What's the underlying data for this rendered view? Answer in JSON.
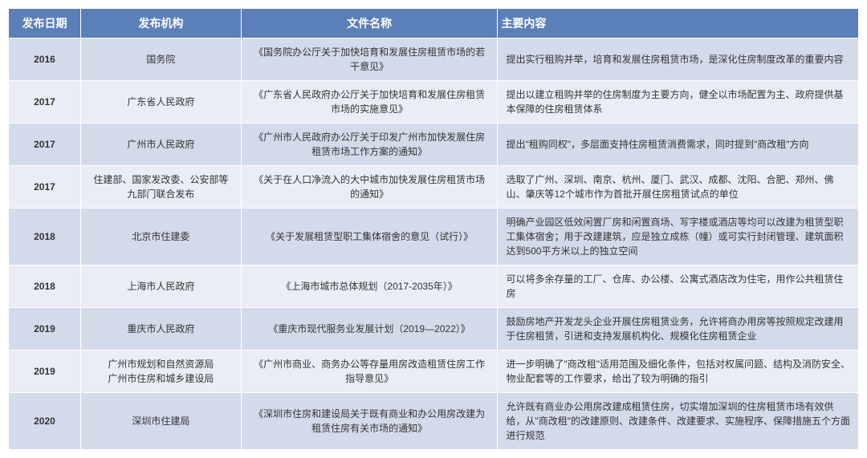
{
  "table": {
    "headers": [
      "发布日期",
      "发布机构",
      "文件名称",
      "主要内容"
    ],
    "header_bg": "#5b7fb9",
    "header_color": "#ffffff",
    "odd_row_bg": "#d3daea",
    "even_row_bg": "#eaedf5",
    "text_color": "#333333",
    "font_size_header": 14,
    "font_size_cell": 12,
    "rows": [
      {
        "date": "2016",
        "agency": "国务院",
        "docname": "《国务院办公厅关于加快培育和发展住房租赁市场的若干意见》",
        "content": "提出实行租购并举，培育和发展住房租赁市场，是深化住房制度改革的重要内容"
      },
      {
        "date": "2017",
        "agency": "广东省人民政府",
        "docname": "《广东省人民政府办公厅关于加快培育和发展住房租赁市场的实施意见》",
        "content": "提出以建立租购并举的住房制度为主要方向，健全以市场配置为主、政府提供基本保障的住房租赁体系"
      },
      {
        "date": "2017",
        "agency": "广州市人民政府",
        "docname": "《广州市人民政府办公厅关于印发广州市加快发展住房租赁市场工作方案的通知》",
        "content": "提出\"租购同权\"，多层面支持住房租赁消费需求，同时提到\"商改租\"方向"
      },
      {
        "date": "2017",
        "agency": "住建部、国家发改委、公安部等九部门联合发布",
        "docname": "《关于在人口净流入的大中城市加快发展住房租赁市场的通知》",
        "content": "选取了广州、深圳、南京、杭州、厦门、武汉、成都、沈阳、合肥、郑州、佛山、肇庆等12个城市作为首批开展住房租赁试点的单位"
      },
      {
        "date": "2018",
        "agency": "北京市住建委",
        "docname": "《关于发展租赁型职工集体宿舍的意见（试行）》",
        "content": "明确产业园区低效闲置厂房和闲置商场、写字楼或酒店等均可以改建为租赁型职工集体宿舍；用于改建建筑，应是独立成栋（幢）或可实行封闭管理、建筑面积达到500平方米以上的独立空间"
      },
      {
        "date": "2018",
        "agency": "上海市人民政府",
        "docname": "《上海市城市总体规划（2017-2035年）》",
        "content": "可以将多余存量的工厂、仓库、办公楼、公寓式酒店改为住宅，用作公共租赁住房"
      },
      {
        "date": "2019",
        "agency": "重庆市人民政府",
        "docname": "《重庆市现代服务业发展计划（2019—2022）》",
        "content": "鼓励房地产开发龙头企业开展住房租赁业务，允许将商办用房等按照规定改建用于住房租赁，引进和支持发展机构化、规模化住房租赁企业"
      },
      {
        "date": "2019",
        "agency": "广州市规划和自然资源局\n广州市住房和城乡建设局",
        "docname": "《广州市商业、商务办公等存量用房改造租赁住房工作指导意见》",
        "content": "进一步明确了\"商改租\"适用范围及细化条件，包括对权属问题、结构及消防安全、物业配套等的工作要求，给出了较为明确的指引"
      },
      {
        "date": "2020",
        "agency": "深圳市住建局",
        "docname": "《深圳市住房和建设局关于既有商业和办公用房改建为租赁住房有关市场的通知》",
        "content": "允许既有商业办公用房改建成租赁住房，切实增加深圳的住房租赁市场有效供给，从\"商改租\"的改建原则、改建条件、改建要求、实施程序、保障措施五个方面进行规范"
      }
    ]
  }
}
